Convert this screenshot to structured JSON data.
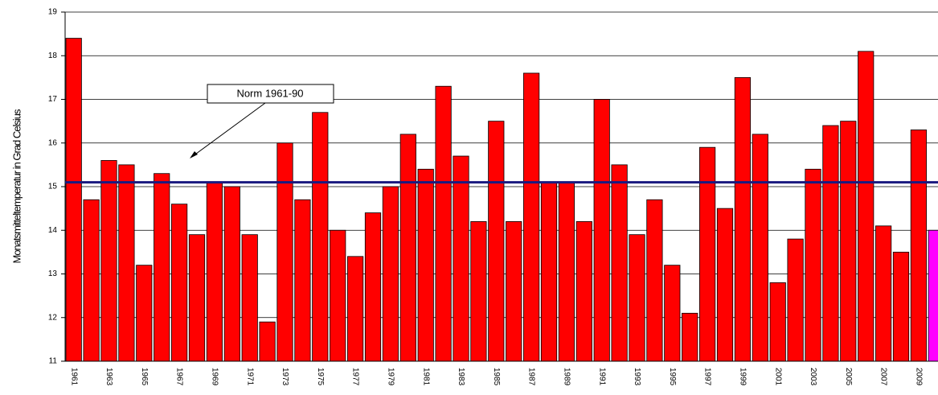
{
  "chart_data": {
    "type": "bar",
    "y_label": "Monatsmitteltemperatur in Grad Celsius",
    "categories": [
      "1961",
      null,
      "1963",
      null,
      "1965",
      null,
      "1967",
      null,
      "1969",
      null,
      "1971",
      null,
      "1973",
      null,
      "1975",
      null,
      "1977",
      null,
      "1979",
      null,
      "1981",
      null,
      "1983",
      null,
      "1985",
      null,
      "1987",
      null,
      "1989",
      null,
      "1991",
      null,
      "1993",
      null,
      "1995",
      null,
      "1997",
      null,
      "1999",
      null,
      "2001",
      null,
      "2003",
      null,
      "2005",
      null,
      "2007",
      null,
      "2009",
      null
    ],
    "values": [
      18.4,
      14.7,
      15.6,
      15.5,
      13.2,
      15.3,
      14.6,
      13.9,
      15.1,
      15.0,
      13.9,
      11.9,
      16.0,
      14.7,
      16.7,
      14.0,
      13.4,
      14.4,
      15.0,
      16.2,
      15.4,
      17.3,
      15.7,
      14.2,
      16.5,
      14.2,
      17.6,
      15.1,
      15.1,
      14.2,
      17.0,
      15.5,
      13.9,
      14.7,
      13.2,
      12.1,
      15.9,
      14.5,
      17.5,
      16.2,
      12.8,
      13.8,
      15.4,
      16.4,
      16.5,
      18.1,
      14.1,
      13.5,
      16.3,
      14.0
    ],
    "colors": [
      "#ff0000",
      "#ff0000",
      "#ff0000",
      "#ff0000",
      "#ff0000",
      "#ff0000",
      "#ff0000",
      "#ff0000",
      "#ff0000",
      "#ff0000",
      "#ff0000",
      "#ff0000",
      "#ff0000",
      "#ff0000",
      "#ff0000",
      "#ff0000",
      "#ff0000",
      "#ff0000",
      "#ff0000",
      "#ff0000",
      "#ff0000",
      "#ff0000",
      "#ff0000",
      "#ff0000",
      "#ff0000",
      "#ff0000",
      "#ff0000",
      "#ff0000",
      "#ff0000",
      "#ff0000",
      "#ff0000",
      "#ff0000",
      "#ff0000",
      "#ff0000",
      "#ff0000",
      "#ff0000",
      "#ff0000",
      "#ff0000",
      "#ff0000",
      "#ff0000",
      "#ff0000",
      "#ff0000",
      "#ff0000",
      "#ff0000",
      "#ff0000",
      "#ff0000",
      "#ff0000",
      "#ff0000",
      "#ff0000",
      "#ff00ff"
    ],
    "ylim": [
      11,
      19
    ],
    "yticks": [
      11,
      12,
      13,
      14,
      15,
      16,
      17,
      18,
      19
    ],
    "grid": true,
    "norm": {
      "value": 15.1,
      "label": "Norm 1961-90",
      "color": "#1a1a80"
    }
  }
}
